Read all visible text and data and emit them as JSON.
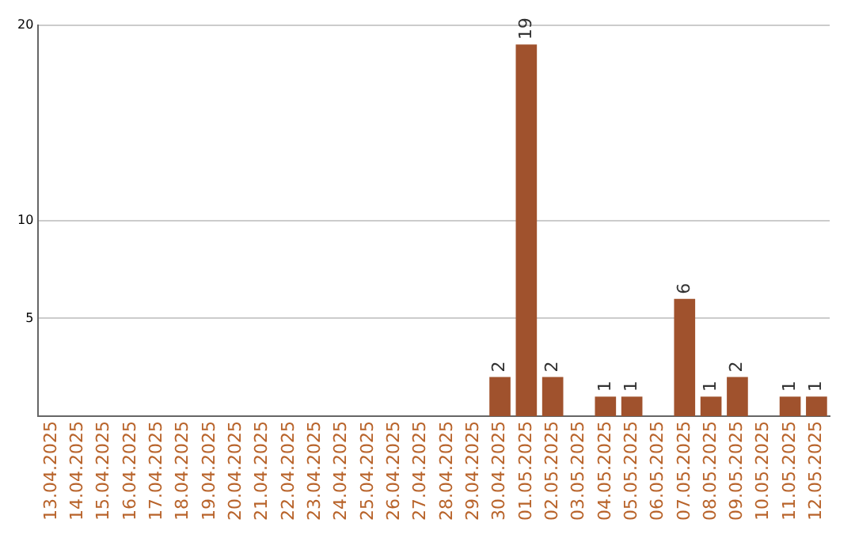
{
  "chart_data": {
    "type": "bar",
    "categories": [
      "13.04.2025",
      "14.04.2025",
      "15.04.2025",
      "16.04.2025",
      "17.04.2025",
      "18.04.2025",
      "19.04.2025",
      "20.04.2025",
      "21.04.2025",
      "22.04.2025",
      "23.04.2025",
      "24.04.2025",
      "25.04.2025",
      "26.04.2025",
      "27.04.2025",
      "28.04.2025",
      "29.04.2025",
      "30.04.2025",
      "01.05.2025",
      "02.05.2025",
      "03.05.2025",
      "04.05.2025",
      "05.05.2025",
      "06.05.2025",
      "07.05.2025",
      "08.05.2025",
      "09.05.2025",
      "10.05.2025",
      "11.05.2025",
      "12.05.2025"
    ],
    "values": [
      0,
      0,
      0,
      0,
      0,
      0,
      0,
      0,
      0,
      0,
      0,
      0,
      0,
      0,
      0,
      0,
      0,
      2,
      19,
      2,
      0,
      1,
      1,
      0,
      6,
      1,
      2,
      0,
      1,
      1
    ],
    "value_labels": [
      null,
      null,
      null,
      null,
      null,
      null,
      null,
      null,
      null,
      null,
      null,
      null,
      null,
      null,
      null,
      null,
      null,
      "2",
      "19",
      "2",
      null,
      "1",
      "1",
      null,
      "6",
      "1",
      "2",
      null,
      "1",
      "1"
    ],
    "color": "#a0522d",
    "ylim": [
      0,
      20
    ],
    "yticks": [
      5,
      10,
      20
    ],
    "grid": "y",
    "legend": false
  }
}
